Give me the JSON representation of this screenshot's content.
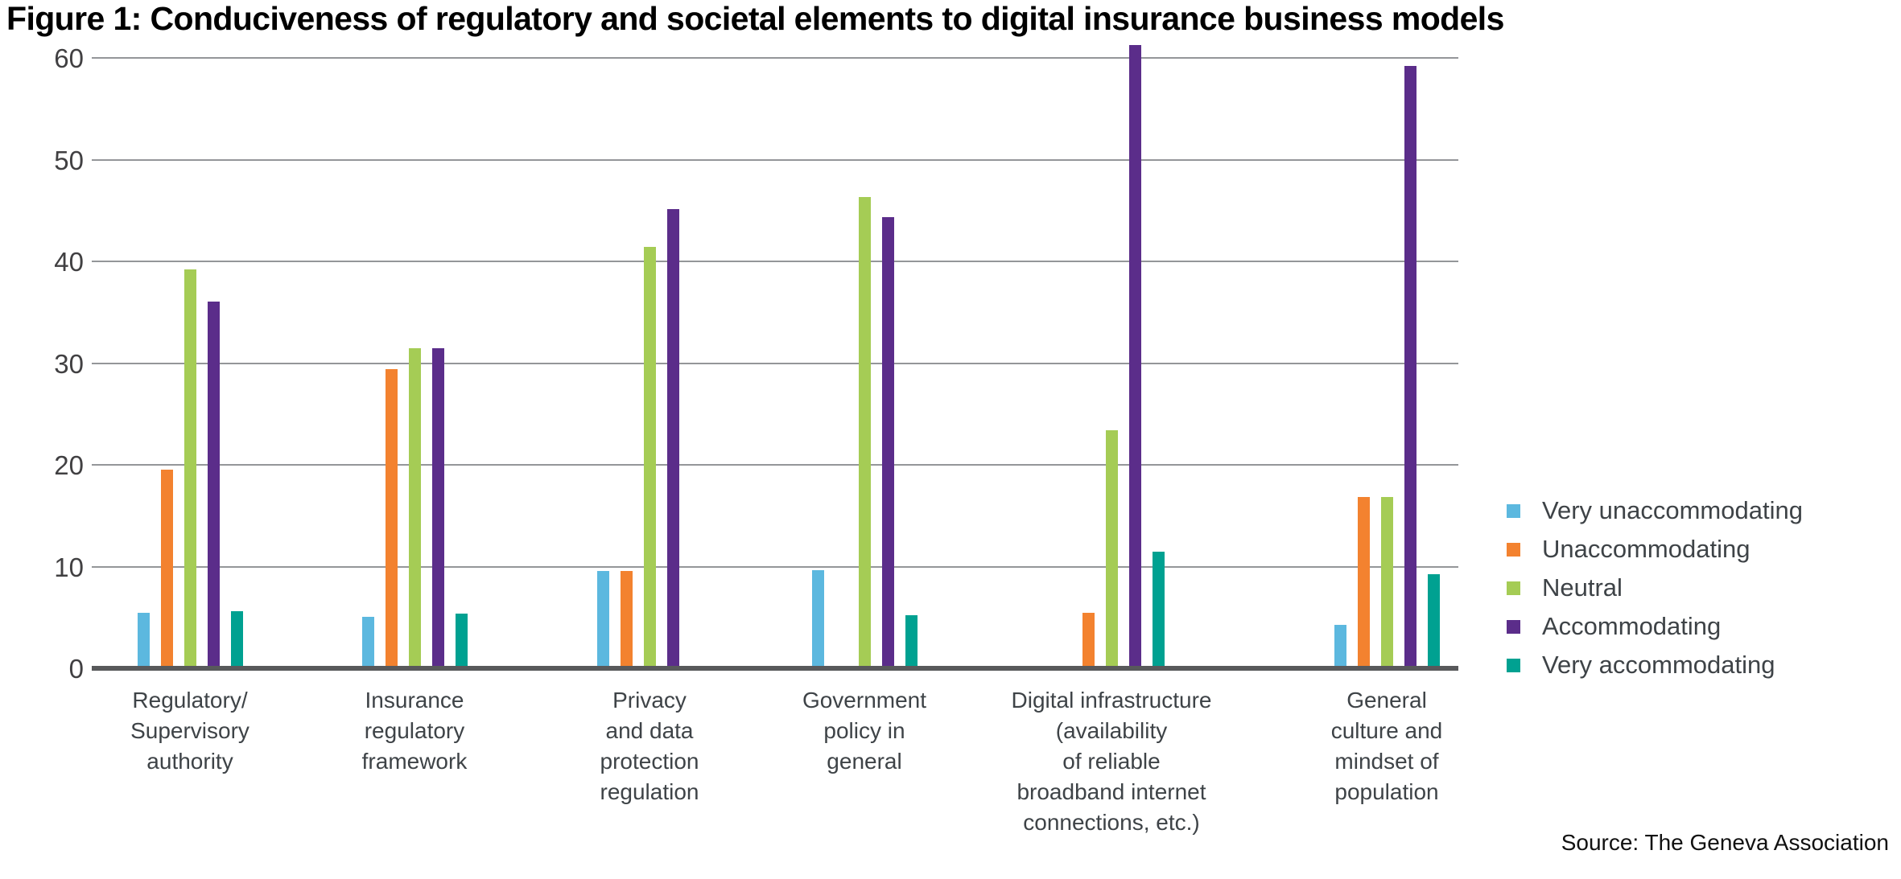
{
  "title": "Figure 1: Conduciveness of regulatory and societal elements to digital insurance business models",
  "source": "Source: The Geneva Association",
  "chart_data": {
    "type": "bar",
    "title": "Figure 1: Conduciveness of regulatory and societal elements to digital insurance business models",
    "xlabel": "",
    "ylabel": "",
    "ylim": [
      0,
      60
    ],
    "yticks": [
      0,
      10,
      20,
      30,
      40,
      50,
      60
    ],
    "grid": "horizontal",
    "legend_position": "right",
    "categories": [
      "Regulatory/\nSupervisory\nauthority",
      "Insurance\nregulatory\nframework",
      "Privacy\nand data\nprotection\nregulation",
      "Government\npolicy in\ngeneral",
      "Digital infrastructure\n(availability\nof reliable\nbroadband internet\nconnections, etc.)",
      "General\nculture and\nmindset of\npopulation"
    ],
    "series": [
      {
        "name": "Very unaccommodating",
        "color": "#5CB8DF",
        "values": [
          5.2,
          4.8,
          9.3,
          9.4,
          0,
          4.0
        ]
      },
      {
        "name": "Unaccommodating",
        "color": "#F3822F",
        "values": [
          19.3,
          29.2,
          9.3,
          0,
          5.2,
          16.6
        ]
      },
      {
        "name": "Neutral",
        "color": "#A5CC55",
        "values": [
          39.0,
          31.2,
          41.2,
          46.1,
          23.2,
          16.6
        ]
      },
      {
        "name": "Accommodating",
        "color": "#5B2D8A",
        "values": [
          35.8,
          31.2,
          44.9,
          44.1,
          61.0,
          59.0
        ]
      },
      {
        "name": "Very accommodating",
        "color": "#00A191",
        "values": [
          5.4,
          5.1,
          0,
          5.0,
          11.2,
          9.0
        ]
      }
    ],
    "colors": {
      "gridline": "#949699",
      "axis_line": "#58595B",
      "tick_text": "#414042",
      "label_text": "#3E4347"
    }
  }
}
